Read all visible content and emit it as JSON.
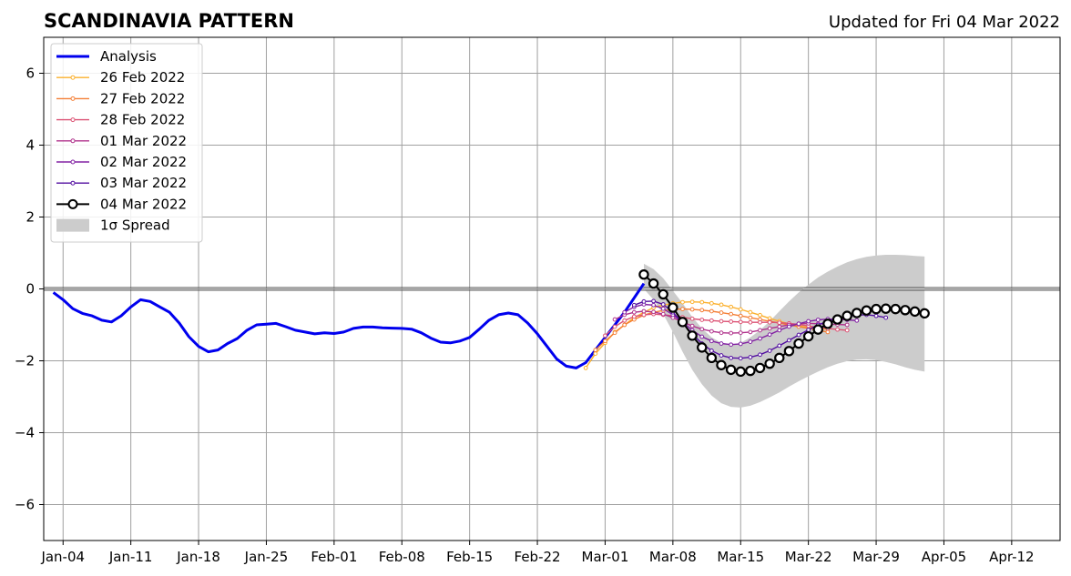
{
  "chart_data": {
    "type": "line",
    "title": "SCANDINAVIA PATTERN",
    "subtitle": "Updated for Fri 04 Mar 2022",
    "xlim": [
      "2022-01-02",
      "2022-04-17"
    ],
    "ylim": [
      -7,
      7
    ],
    "x_ticks": [
      {
        "date": "2022-01-04",
        "label": "Jan-04"
      },
      {
        "date": "2022-01-11",
        "label": "Jan-11"
      },
      {
        "date": "2022-01-18",
        "label": "Jan-18"
      },
      {
        "date": "2022-01-25",
        "label": "Jan-25"
      },
      {
        "date": "2022-02-01",
        "label": "Feb-01"
      },
      {
        "date": "2022-02-08",
        "label": "Feb-08"
      },
      {
        "date": "2022-02-15",
        "label": "Feb-15"
      },
      {
        "date": "2022-02-22",
        "label": "Feb-22"
      },
      {
        "date": "2022-03-01",
        "label": "Mar-01"
      },
      {
        "date": "2022-03-08",
        "label": "Mar-08"
      },
      {
        "date": "2022-03-15",
        "label": "Mar-15"
      },
      {
        "date": "2022-03-22",
        "label": "Mar-22"
      },
      {
        "date": "2022-03-29",
        "label": "Mar-29"
      },
      {
        "date": "2022-04-05",
        "label": "Apr-05"
      },
      {
        "date": "2022-04-12",
        "label": "Apr-12"
      }
    ],
    "y_ticks": [
      {
        "value": 6,
        "label": "6"
      },
      {
        "value": 4,
        "label": "4"
      },
      {
        "value": 2,
        "label": "2"
      },
      {
        "value": 0,
        "label": "0"
      },
      {
        "value": -2,
        "label": "−2"
      },
      {
        "value": -4,
        "label": "−4"
      },
      {
        "value": -6,
        "label": "−6"
      }
    ],
    "grid": true,
    "legend_position": "top-left",
    "analysis": {
      "name": "Analysis",
      "color": "#0000ee",
      "start": "2022-01-03",
      "values": [
        -0.1,
        -0.3,
        -0.55,
        -0.68,
        -0.75,
        -0.87,
        -0.92,
        -0.75,
        -0.5,
        -0.3,
        -0.35,
        -0.5,
        -0.65,
        -0.95,
        -1.33,
        -1.6,
        -1.75,
        -1.7,
        -1.52,
        -1.38,
        -1.15,
        -1.0,
        -0.98,
        -0.96,
        -1.05,
        -1.15,
        -1.2,
        -1.25,
        -1.22,
        -1.24,
        -1.2,
        -1.1,
        -1.06,
        -1.06,
        -1.08,
        -1.09,
        -1.1,
        -1.12,
        -1.22,
        -1.37,
        -1.48,
        -1.5,
        -1.45,
        -1.35,
        -1.12,
        -0.87,
        -0.72,
        -0.67,
        -0.72,
        -0.95,
        -1.25,
        -1.6,
        -1.95,
        -2.15,
        -2.2,
        -2.05,
        -1.7,
        -1.35,
        -1.0,
        -0.65,
        -0.25,
        0.15
      ]
    },
    "series": [
      {
        "name": "26 Feb 2022",
        "color": "#fbb02d",
        "start": "2022-02-27",
        "values": [
          -2.2,
          -1.8,
          -1.5,
          -1.2,
          -1.0,
          -0.8,
          -0.65,
          -0.52,
          -0.45,
          -0.4,
          -0.37,
          -0.36,
          -0.37,
          -0.4,
          -0.44,
          -0.5,
          -0.57,
          -0.65,
          -0.73,
          -0.82,
          -0.9,
          -0.97,
          -1.03,
          -1.07,
          -1.1,
          -1.12
        ]
      },
      {
        "name": "27 Feb 2022",
        "color": "#f47f36",
        "start": "2022-02-28",
        "values": [
          -1.7,
          -1.45,
          -1.22,
          -1.0,
          -0.85,
          -0.73,
          -0.65,
          -0.6,
          -0.57,
          -0.56,
          -0.57,
          -0.59,
          -0.62,
          -0.66,
          -0.7,
          -0.75,
          -0.8,
          -0.85,
          -0.9,
          -0.95,
          -1.0,
          -1.05,
          -1.1,
          -1.15,
          -1.2
        ]
      },
      {
        "name": "28 Feb 2022",
        "color": "#dc5274",
        "start": "2022-03-01",
        "values": [
          -1.3,
          -1.05,
          -0.88,
          -0.77,
          -0.72,
          -0.7,
          -0.72,
          -0.75,
          -0.79,
          -0.83,
          -0.86,
          -0.88,
          -0.9,
          -0.91,
          -0.92,
          -0.93,
          -0.93,
          -0.93,
          -0.94,
          -0.96,
          -0.99,
          -1.03,
          -1.07,
          -1.1,
          -1.13,
          -1.15
        ]
      },
      {
        "name": "01 Mar 2022",
        "color": "#b0338c",
        "start": "2022-03-02",
        "values": [
          -0.85,
          -0.72,
          -0.65,
          -0.62,
          -0.64,
          -0.7,
          -0.8,
          -0.92,
          -1.03,
          -1.12,
          -1.18,
          -1.22,
          -1.23,
          -1.22,
          -1.2,
          -1.15,
          -1.1,
          -1.05,
          -1.0,
          -0.97,
          -0.96,
          -0.97,
          -0.98,
          -0.99,
          -1.0
        ]
      },
      {
        "name": "02 Mar 2022",
        "color": "#8222a3",
        "start": "2022-03-03",
        "values": [
          -0.65,
          -0.5,
          -0.43,
          -0.45,
          -0.55,
          -0.72,
          -0.92,
          -1.15,
          -1.33,
          -1.45,
          -1.52,
          -1.55,
          -1.53,
          -1.47,
          -1.38,
          -1.27,
          -1.15,
          -1.05,
          -0.97,
          -0.9,
          -0.86,
          -0.84,
          -0.84,
          -0.86,
          -0.88
        ]
      },
      {
        "name": "03 Mar 2022",
        "color": "#530fa1",
        "start": "2022-03-04",
        "values": [
          -0.45,
          -0.35,
          -0.34,
          -0.43,
          -0.65,
          -0.95,
          -1.25,
          -1.52,
          -1.72,
          -1.85,
          -1.92,
          -1.93,
          -1.9,
          -1.83,
          -1.72,
          -1.58,
          -1.43,
          -1.28,
          -1.14,
          -1.0,
          -0.9,
          -0.82,
          -0.76,
          -0.73,
          -0.72,
          -0.75,
          -0.8
        ]
      }
    ],
    "forecast": {
      "name": "04 Mar 2022",
      "start": "2022-03-05",
      "values": [
        0.4,
        0.15,
        -0.15,
        -0.52,
        -0.92,
        -1.3,
        -1.63,
        -1.92,
        -2.12,
        -2.25,
        -2.3,
        -2.28,
        -2.2,
        -2.08,
        -1.92,
        -1.73,
        -1.52,
        -1.32,
        -1.13,
        -0.97,
        -0.85,
        -0.75,
        -0.67,
        -0.6,
        -0.56,
        -0.55,
        -0.56,
        -0.59,
        -0.63,
        -0.68
      ]
    },
    "spread": {
      "name": "1σ Spread",
      "color": "#cccccc",
      "start": "2022-03-05",
      "upper": [
        0.7,
        0.55,
        0.3,
        -0.05,
        -0.4,
        -0.78,
        -1.1,
        -1.35,
        -1.5,
        -1.55,
        -1.5,
        -1.35,
        -1.15,
        -0.9,
        -0.62,
        -0.35,
        -0.1,
        0.12,
        0.32,
        0.48,
        0.62,
        0.74,
        0.83,
        0.89,
        0.93,
        0.95,
        0.95,
        0.94,
        0.92,
        0.9
      ],
      "lower": [
        0.0,
        -0.3,
        -0.7,
        -1.2,
        -1.75,
        -2.25,
        -2.65,
        -2.97,
        -3.18,
        -3.28,
        -3.3,
        -3.25,
        -3.15,
        -3.02,
        -2.88,
        -2.72,
        -2.57,
        -2.43,
        -2.3,
        -2.18,
        -2.08,
        -2.01,
        -1.97,
        -1.96,
        -1.98,
        -2.03,
        -2.1,
        -2.18,
        -2.25,
        -2.3
      ]
    }
  }
}
